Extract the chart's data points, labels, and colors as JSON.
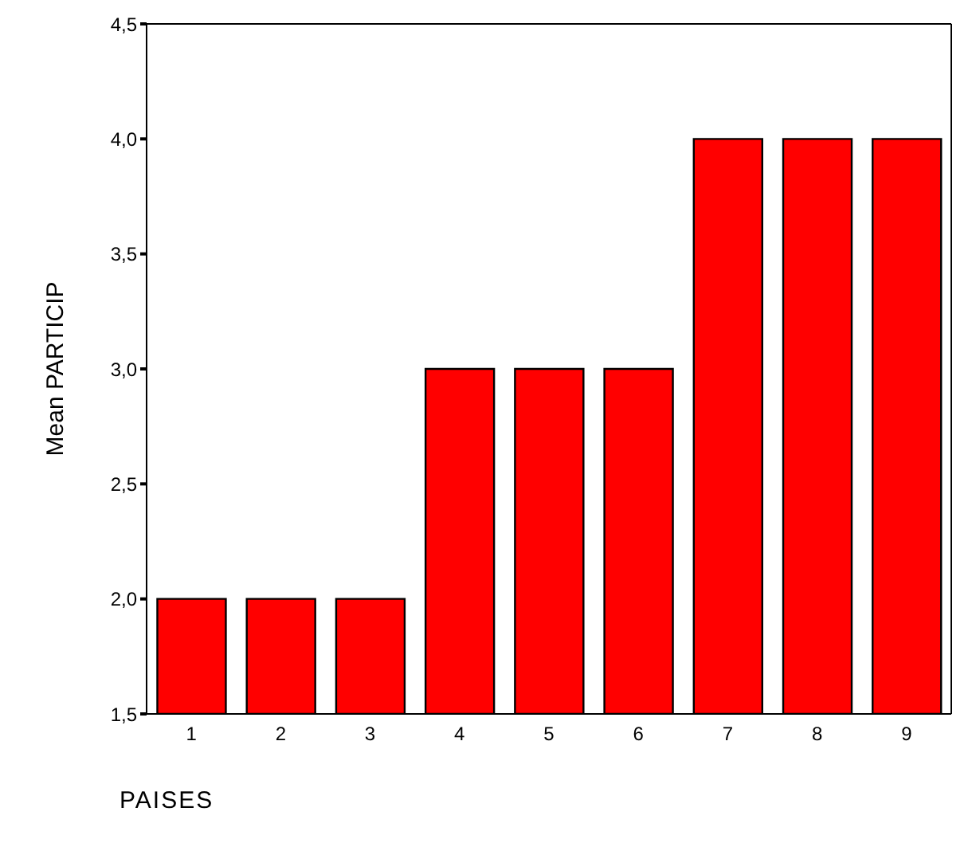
{
  "chart_data": {
    "type": "bar",
    "xlabel": "PAISES",
    "ylabel": "Mean PARTICIP",
    "categories": [
      "1",
      "2",
      "3",
      "4",
      "5",
      "6",
      "7",
      "8",
      "9"
    ],
    "values": [
      2,
      2,
      2,
      3,
      3,
      3,
      4,
      4,
      4
    ],
    "color": "#ff0000",
    "ylim": [
      1.5,
      4.5
    ],
    "yticks": [
      {
        "value": 1.5,
        "label": "1,5"
      },
      {
        "value": 2.0,
        "label": "2,0"
      },
      {
        "value": 2.5,
        "label": "2,5"
      },
      {
        "value": 3.0,
        "label": "3,0"
      },
      {
        "value": 3.5,
        "label": "3,5"
      },
      {
        "value": 4.0,
        "label": "4,0"
      },
      {
        "value": 4.5,
        "label": "4,5"
      }
    ],
    "grid": false,
    "legend": false
  }
}
